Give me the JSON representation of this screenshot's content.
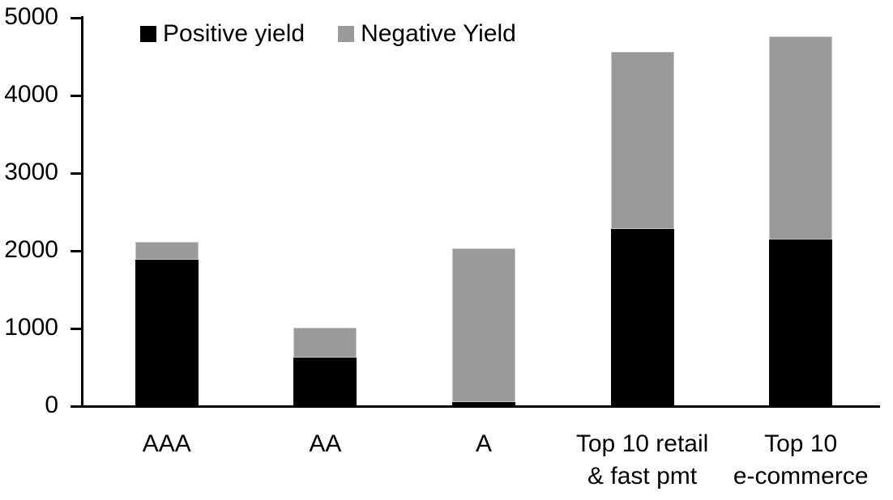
{
  "chart_data": {
    "type": "bar",
    "stacked": true,
    "title": "",
    "xlabel": "",
    "ylabel": "",
    "categories": [
      "AAA",
      "AA",
      "A",
      "Top 10 retail\n& fast pmt",
      "Top 10\ne-commerce"
    ],
    "series": [
      {
        "name": "Positive yield",
        "color": "#000000",
        "values": [
          1890,
          620,
          50,
          2280,
          2150
        ]
      },
      {
        "name": "Negative Yield",
        "color": "#9a9a9a",
        "values": [
          220,
          390,
          1980,
          2280,
          2610
        ]
      }
    ],
    "totals": [
      2110,
      1010,
      2030,
      4560,
      4760
    ],
    "ylim": [
      0,
      5000
    ],
    "yticks": [
      0,
      1000,
      2000,
      3000,
      4000,
      5000
    ],
    "grid": false,
    "legend_position": "top",
    "axis_color": "#000000",
    "background_color": "#ffffff"
  }
}
